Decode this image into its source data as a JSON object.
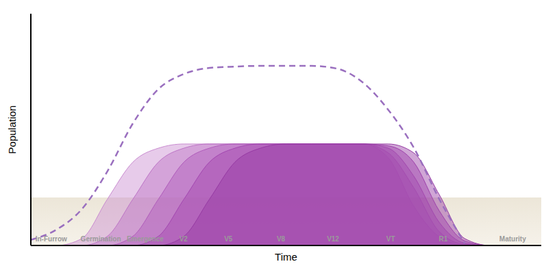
{
  "chart_data": {
    "type": "area",
    "x_label": "Time",
    "y_label": "Population",
    "x": [
      0,
      5,
      10,
      15,
      20,
      25,
      30,
      35,
      40,
      45,
      50,
      55,
      60,
      65,
      70,
      75,
      80,
      85,
      90,
      95,
      100
    ],
    "xlim": [
      0,
      100
    ],
    "xticks": [
      {
        "value": 4,
        "label": "In-Furrow"
      },
      {
        "value": 13.7,
        "label": "Germination"
      },
      {
        "value": 22.4,
        "label": "Emergence"
      },
      {
        "value": 29.9,
        "label": "V2"
      },
      {
        "value": 38.7,
        "label": "V5"
      },
      {
        "value": 49,
        "label": "V8"
      },
      {
        "value": 59.2,
        "label": "V12"
      },
      {
        "value": 70.5,
        "label": "VT"
      },
      {
        "value": 80.8,
        "label": "R1"
      },
      {
        "value": 94.4,
        "label": "Maturity"
      }
    ],
    "ylim": [
      0,
      100
    ],
    "tick_labels": "x",
    "grid": false,
    "series": [
      {
        "type": "area",
        "color": "#c98bd0",
        "values": [
          0,
          0,
          3,
          20,
          36,
          42,
          43.8,
          43.8,
          43.8,
          43.8,
          43.8,
          43.8,
          43.8,
          43.8,
          37.9,
          17,
          3.8,
          0,
          0,
          0,
          0
        ]
      },
      {
        "type": "area",
        "color": "#bd74c6",
        "values": [
          0,
          0,
          0,
          4,
          20,
          36,
          42,
          43.8,
          43.8,
          43.8,
          43.8,
          43.8,
          43.8,
          43.8,
          40,
          25,
          6,
          0.5,
          0,
          0,
          0
        ]
      },
      {
        "type": "area",
        "color": "#b05cbb",
        "values": [
          0,
          0,
          0,
          0,
          4,
          20,
          36,
          42,
          43.8,
          43.8,
          43.8,
          43.8,
          43.8,
          43.8,
          42,
          30,
          10,
          1,
          0,
          0,
          0
        ]
      },
      {
        "type": "area",
        "color": "#a347b0",
        "values": [
          0,
          0,
          0,
          0,
          0,
          4,
          20,
          36,
          42,
          43.8,
          43.8,
          43.8,
          43.8,
          43.8,
          43,
          36,
          15,
          2,
          0,
          0,
          0
        ]
      },
      {
        "type": "area",
        "color": "#963aa3",
        "values": [
          0,
          0,
          0,
          0,
          0,
          0,
          4,
          20,
          36,
          42,
          43.8,
          43.8,
          43.8,
          43.8,
          43.8,
          40,
          22,
          3,
          0,
          0,
          0
        ]
      },
      {
        "type": "line",
        "color": "#9a6fbf",
        "line_style": "dashed",
        "values": [
          2.4,
          6.8,
          15.7,
          32,
          52.7,
          67.5,
          74,
          76.6,
          77.2,
          77.5,
          77.5,
          77.5,
          76.3,
          70.4,
          58.6,
          42.3,
          20.1,
          0.9,
          null,
          null,
          null
        ]
      }
    ]
  }
}
